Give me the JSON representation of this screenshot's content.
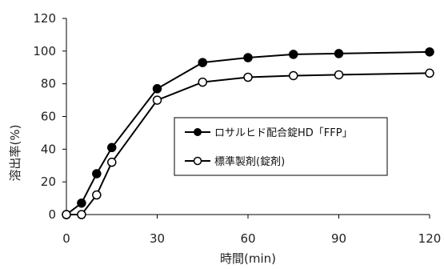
{
  "chart_data": {
    "type": "line",
    "xlabel": "時間(min)",
    "ylabel": "溶出率(%)",
    "xlim": [
      0,
      120
    ],
    "ylim": [
      0,
      120
    ],
    "xticks": [
      "0",
      "30",
      "60",
      "90",
      "120"
    ],
    "yticks": [
      "0",
      "20",
      "40",
      "60",
      "80",
      "100",
      "120"
    ],
    "legend_position": "center-right",
    "series": [
      {
        "name": "ロサルヒド配合錠HD「FFP」",
        "marker": "filled-circle",
        "color": "#000000",
        "x": [
          0,
          5,
          10,
          15,
          30,
          45,
          60,
          75,
          90,
          120
        ],
        "y": [
          0,
          7,
          25,
          41,
          77,
          93,
          96,
          98,
          98.5,
          99.5
        ]
      },
      {
        "name": "標準製剤(錠剤)",
        "marker": "open-circle",
        "color": "#000000",
        "x": [
          0,
          5,
          10,
          15,
          30,
          45,
          60,
          75,
          90,
          120
        ],
        "y": [
          0,
          0,
          12,
          32,
          70,
          81,
          84,
          85,
          85.5,
          86.5
        ]
      }
    ]
  }
}
